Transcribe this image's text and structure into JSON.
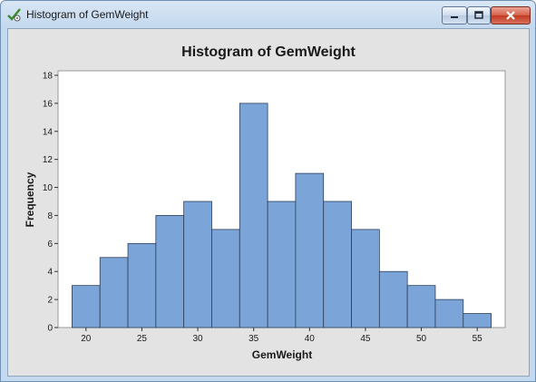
{
  "window": {
    "title": "Histogram of GemWeight",
    "icon": "minitab-checkmark-icon",
    "buttons": [
      "minimize",
      "maximize",
      "close"
    ]
  },
  "colors": {
    "bar_fill": "#7ba5d9",
    "bar_stroke": "#2c3e55",
    "plot_background": "#ffffff",
    "client_background": "#e3e3e3"
  },
  "chart_data": {
    "type": "bar",
    "title": "Histogram of GemWeight",
    "xlabel": "GemWeight",
    "ylabel": "Frequency",
    "bin_width": 2.5,
    "bin_edges": [
      18.75,
      21.25,
      23.75,
      26.25,
      28.75,
      31.25,
      33.75,
      36.25,
      38.75,
      41.25,
      43.75,
      46.25,
      48.75,
      51.25,
      53.75,
      56.25
    ],
    "values": [
      3,
      5,
      6,
      8,
      9,
      7,
      16,
      9,
      11,
      9,
      7,
      4,
      3,
      2,
      1
    ],
    "x_ticks": [
      20,
      25,
      30,
      35,
      40,
      45,
      50,
      55
    ],
    "y_ticks": [
      0,
      2,
      4,
      6,
      8,
      10,
      12,
      14,
      16,
      18
    ],
    "xlim": [
      17.5,
      57.5
    ],
    "ylim": [
      0,
      18
    ],
    "grid": false,
    "legend": "none"
  }
}
